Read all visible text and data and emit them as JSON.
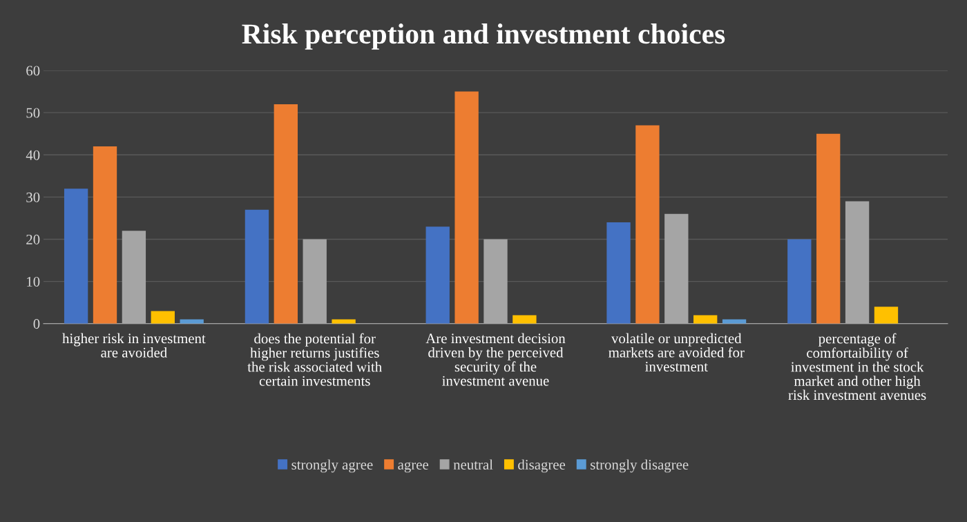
{
  "chart_data": {
    "type": "bar",
    "title": "Risk perception and investment choices",
    "categories": [
      "higher risk in investment\nare avoided",
      "does the potential for\nhigher returns justifies\nthe risk associated with\ncertain investments",
      "Are investment decision\ndriven by the perceived\nsecurity of the\ninvestment avenue",
      "volatile or unpredicted\nmarkets are avoided for\ninvestment",
      "percentage of\ncomfortaibility of\ninvestment in the stock\nmarket and other high\nrisk investment avenues"
    ],
    "series": [
      {
        "name": "strongly agree",
        "color": "#4472c4",
        "values": [
          32,
          27,
          23,
          24,
          20
        ]
      },
      {
        "name": "agree",
        "color": "#ed7d31",
        "values": [
          42,
          52,
          55,
          47,
          45
        ]
      },
      {
        "name": "neutral",
        "color": "#a5a5a5",
        "values": [
          22,
          20,
          20,
          26,
          29
        ]
      },
      {
        "name": "disagree",
        "color": "#ffc000",
        "values": [
          3,
          1,
          2,
          2,
          4
        ]
      },
      {
        "name": "strongly disagree",
        "color": "#5b9bd5",
        "values": [
          1,
          0,
          0,
          1,
          0
        ]
      }
    ],
    "ylim": [
      0,
      60
    ],
    "yticks": [
      0,
      10,
      20,
      30,
      40,
      50,
      60
    ],
    "grid": "y",
    "legend": "bottom"
  }
}
